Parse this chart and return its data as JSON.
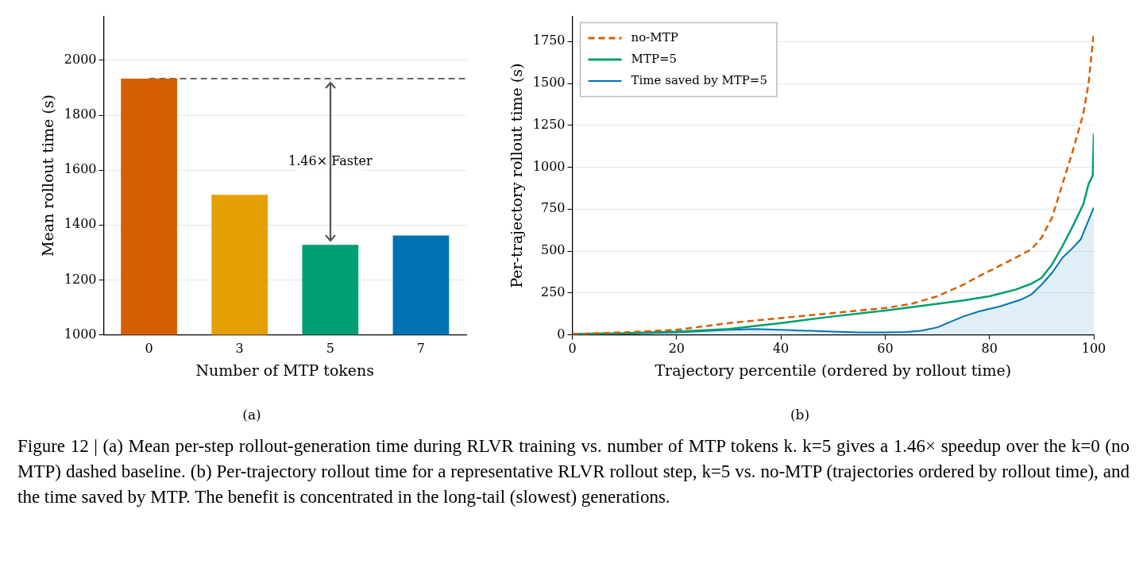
{
  "chart_data": [
    {
      "type": "bar",
      "title": "(a)",
      "xlabel": "Number of MTP tokens",
      "ylabel": "Mean rollout time (s)",
      "categories": [
        "0",
        "3",
        "5",
        "7"
      ],
      "values": [
        1933,
        1510,
        1328,
        1362
      ],
      "colors": [
        "#d55e00",
        "#e69f00",
        "#009e73",
        "#0072b2"
      ],
      "ylim": [
        1000,
        2160
      ],
      "yticks": [
        1000,
        1200,
        1400,
        1600,
        1800,
        2000
      ],
      "grid": "y",
      "legend": false,
      "ref_lines": [
        {
          "axis": "y",
          "value": 1933,
          "color": "#666666",
          "line_style": "dashed"
        }
      ],
      "annotations": [
        "1.46× Faster"
      ]
    },
    {
      "type": "line",
      "title": "(b)",
      "xlabel": "Trajectory percentile (ordered by rollout time)",
      "ylabel": "Per-trajectory rollout time (s)",
      "xlim": [
        0,
        100
      ],
      "xticks": [
        0,
        20,
        40,
        60,
        80,
        100
      ],
      "ylim": [
        0,
        1900
      ],
      "yticks": [
        0,
        250,
        500,
        750,
        1000,
        1250,
        1500,
        1750
      ],
      "grid": "y",
      "legend": "top left",
      "marker": "none",
      "series": [
        {
          "name": "no-MTP",
          "color": "#d55e00",
          "line_style": "dashed",
          "x": [
            0,
            10,
            20,
            30,
            40,
            50,
            60,
            65,
            70,
            75,
            78,
            85,
            88,
            90,
            92,
            94,
            96,
            98,
            99,
            100
          ],
          "values": [
            5,
            15,
            30,
            70,
            100,
            130,
            160,
            185,
            230,
            300,
            350,
            460,
            510,
            580,
            700,
            900,
            1100,
            1320,
            1500,
            1800
          ]
        },
        {
          "name": "MTP=5",
          "color": "#009e73",
          "line_style": "solid",
          "x": [
            0,
            10,
            20,
            30,
            40,
            50,
            60,
            65,
            70,
            75,
            80,
            85,
            88,
            90,
            92,
            94,
            96,
            98,
            99,
            99.8,
            100
          ],
          "values": [
            5,
            10,
            20,
            35,
            70,
            110,
            145,
            165,
            185,
            205,
            230,
            270,
            305,
            340,
            420,
            530,
            650,
            780,
            900,
            950,
            1200
          ]
        },
        {
          "name": "Time saved by MTP=5",
          "type": "area",
          "color": "#0072b2",
          "line_style": "solid",
          "x": [
            0,
            10,
            20,
            30,
            35,
            40,
            50,
            55,
            60,
            64,
            67,
            70,
            75,
            78,
            82,
            86,
            88,
            90,
            92,
            94,
            96,
            97.5,
            100
          ],
          "values": [
            0,
            8,
            15,
            30,
            35,
            30,
            20,
            15,
            15,
            17,
            25,
            45,
            110,
            140,
            170,
            210,
            240,
            300,
            370,
            460,
            520,
            570,
            760
          ]
        }
      ],
      "annotations": [
        "Figure 12 | (a) Mean per-step rollout-generation time during RLVR training vs. number of MTP tokens k. k=5 gives a 1.46× speedup over the k=0 (no MTP) dashed baseline. (b) Per-trajectory rollout time for a representative RLVR rollout step, k=5 vs. no-MTP (trajectories ordered by rollout time), and the time saved by MTP. The benefit is concentrated in the long-tail (slowest) generations."
      ]
    }
  ]
}
